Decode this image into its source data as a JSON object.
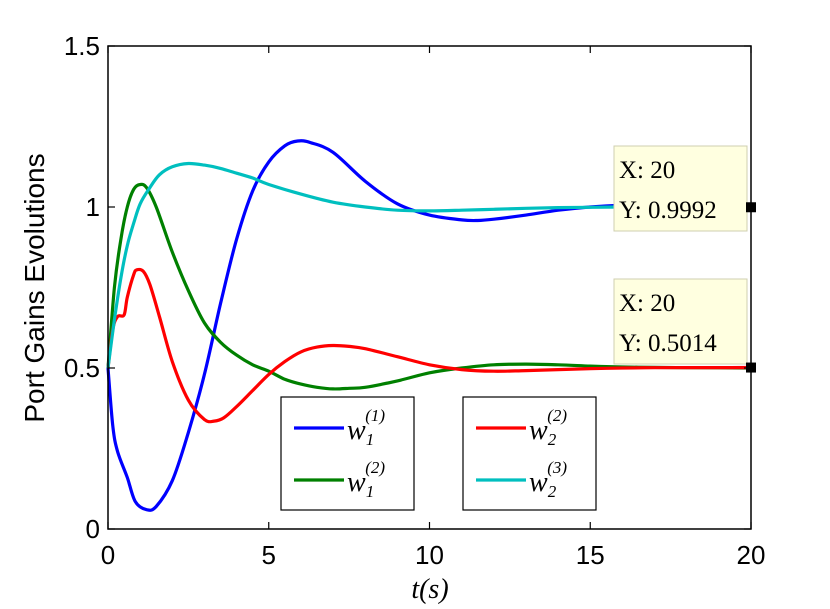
{
  "chart_data": {
    "type": "line",
    "xlabel": "t(s)",
    "ylabel": "Port Gains Evolutions",
    "xlim": [
      0,
      20
    ],
    "ylim": [
      0,
      1.5
    ],
    "x_ticks": [
      "0",
      "5",
      "10",
      "15",
      "20"
    ],
    "y_ticks": [
      "0",
      "0.5",
      "1",
      "1.5"
    ],
    "grid": false,
    "series": [
      {
        "id": "w1_1",
        "name": "w",
        "sub": "1",
        "sup": "(1)",
        "color": "#0000ff",
        "points": [
          [
            0,
            0.5
          ],
          [
            0.15,
            0.32
          ],
          [
            0.3,
            0.24
          ],
          [
            0.6,
            0.16
          ],
          [
            0.85,
            0.085
          ],
          [
            1.2,
            0.06
          ],
          [
            1.5,
            0.07
          ],
          [
            2,
            0.15
          ],
          [
            2.5,
            0.3
          ],
          [
            3,
            0.48
          ],
          [
            3.5,
            0.7
          ],
          [
            4,
            0.9
          ],
          [
            4.5,
            1.05
          ],
          [
            5,
            1.14
          ],
          [
            5.5,
            1.19
          ],
          [
            5.9,
            1.205
          ],
          [
            6.3,
            1.2
          ],
          [
            7,
            1.17
          ],
          [
            8,
            1.08
          ],
          [
            9,
            1.01
          ],
          [
            10,
            0.975
          ],
          [
            11,
            0.96
          ],
          [
            11.5,
            0.958
          ],
          [
            12,
            0.962
          ],
          [
            13,
            0.975
          ],
          [
            14,
            0.99
          ],
          [
            15,
            1.0
          ],
          [
            16,
            1.005
          ],
          [
            17,
            1.006
          ],
          [
            18,
            1.005
          ],
          [
            19,
            1.003
          ],
          [
            20,
            1.002
          ]
        ]
      },
      {
        "id": "w1_2",
        "name": "w",
        "sub": "1",
        "sup": "(2)",
        "color": "#008000",
        "points": [
          [
            0,
            0.5
          ],
          [
            0.2,
            0.75
          ],
          [
            0.4,
            0.9
          ],
          [
            0.6,
            1.0
          ],
          [
            0.8,
            1.055
          ],
          [
            1.0,
            1.07
          ],
          [
            1.2,
            1.06
          ],
          [
            1.5,
            1.0
          ],
          [
            2,
            0.86
          ],
          [
            2.5,
            0.74
          ],
          [
            3,
            0.64
          ],
          [
            3.5,
            0.58
          ],
          [
            4,
            0.54
          ],
          [
            4.5,
            0.51
          ],
          [
            5,
            0.49
          ],
          [
            5.5,
            0.465
          ],
          [
            6,
            0.45
          ],
          [
            6.5,
            0.44
          ],
          [
            7,
            0.435
          ],
          [
            7.5,
            0.437
          ],
          [
            8,
            0.44
          ],
          [
            9,
            0.46
          ],
          [
            10,
            0.485
          ],
          [
            11,
            0.5
          ],
          [
            12,
            0.51
          ],
          [
            13,
            0.512
          ],
          [
            14,
            0.51
          ],
          [
            15,
            0.506
          ],
          [
            16,
            0.503
          ],
          [
            17,
            0.502
          ],
          [
            18,
            0.501
          ],
          [
            19,
            0.5005
          ],
          [
            20,
            0.5
          ]
        ]
      },
      {
        "id": "w2_2",
        "name": "w",
        "sub": "2",
        "sup": "(2)",
        "color": "#ff0000",
        "points": [
          [
            0,
            0.5
          ],
          [
            0.15,
            0.62
          ],
          [
            0.3,
            0.66
          ],
          [
            0.5,
            0.665
          ],
          [
            0.6,
            0.72
          ],
          [
            0.8,
            0.79
          ],
          [
            0.9,
            0.805
          ],
          [
            1.1,
            0.8
          ],
          [
            1.3,
            0.76
          ],
          [
            1.6,
            0.66
          ],
          [
            2,
            0.52
          ],
          [
            2.5,
            0.4
          ],
          [
            3,
            0.34
          ],
          [
            3.3,
            0.335
          ],
          [
            3.6,
            0.345
          ],
          [
            4,
            0.38
          ],
          [
            4.5,
            0.43
          ],
          [
            5,
            0.48
          ],
          [
            5.5,
            0.52
          ],
          [
            6,
            0.55
          ],
          [
            6.5,
            0.565
          ],
          [
            7,
            0.57
          ],
          [
            7.5,
            0.567
          ],
          [
            8,
            0.56
          ],
          [
            9,
            0.535
          ],
          [
            10,
            0.51
          ],
          [
            11,
            0.495
          ],
          [
            12,
            0.49
          ],
          [
            13,
            0.492
          ],
          [
            14,
            0.495
          ],
          [
            15,
            0.498
          ],
          [
            16,
            0.5
          ],
          [
            17,
            0.5008
          ],
          [
            18,
            0.5012
          ],
          [
            19,
            0.5013
          ],
          [
            20,
            0.5014
          ]
        ]
      },
      {
        "id": "w2_3",
        "name": "w",
        "sub": "2",
        "sup": "(3)",
        "color": "#00bfbf",
        "points": [
          [
            0,
            0.5
          ],
          [
            0.2,
            0.65
          ],
          [
            0.4,
            0.78
          ],
          [
            0.6,
            0.88
          ],
          [
            0.8,
            0.95
          ],
          [
            1,
            1.01
          ],
          [
            1.3,
            1.06
          ],
          [
            1.6,
            1.1
          ],
          [
            2,
            1.125
          ],
          [
            2.5,
            1.135
          ],
          [
            3,
            1.13
          ],
          [
            3.5,
            1.12
          ],
          [
            4,
            1.105
          ],
          [
            4.5,
            1.09
          ],
          [
            5,
            1.07
          ],
          [
            6,
            1.04
          ],
          [
            7,
            1.015
          ],
          [
            8,
            1.0
          ],
          [
            9,
            0.99
          ],
          [
            10,
            0.988
          ],
          [
            11,
            0.99
          ],
          [
            12,
            0.993
          ],
          [
            13,
            0.996
          ],
          [
            14,
            0.998
          ],
          [
            15,
            0.999
          ],
          [
            16,
            1.0
          ],
          [
            17,
            1.0
          ],
          [
            18,
            0.9995
          ],
          [
            19,
            0.9993
          ],
          [
            20,
            0.9992
          ]
        ]
      }
    ],
    "datatips": [
      {
        "x_label": "X: 20",
        "y_label": "Y: 0.9992",
        "x": 20,
        "y": 0.9992
      },
      {
        "x_label": "X: 20",
        "y_label": "Y: 0.5014",
        "x": 20,
        "y": 0.5014
      }
    ],
    "legends": [
      [
        "w1_1",
        "w1_2"
      ],
      [
        "w2_2",
        "w2_3"
      ]
    ]
  }
}
